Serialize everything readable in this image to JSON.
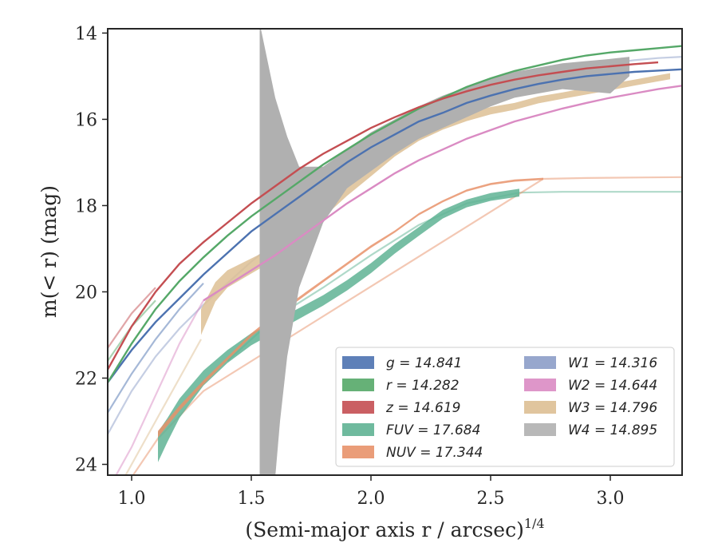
{
  "chart_data": {
    "type": "line",
    "xlabel": "(Semi-major axis r / arcsec)",
    "xlabel_exponent": "1/4",
    "ylabel": "m(< r) (mag)",
    "xlim": [
      0.9,
      3.3
    ],
    "ylim": [
      24.25,
      13.9
    ],
    "y_inverted": true,
    "x_ticks": [
      1.0,
      1.5,
      2.0,
      2.5,
      3.0
    ],
    "x_tick_labels": [
      "1.0",
      "1.5",
      "2.0",
      "2.5",
      "3.0"
    ],
    "y_ticks": [
      14,
      16,
      18,
      20,
      22,
      24
    ],
    "y_tick_labels": [
      "14",
      "16",
      "18",
      "20",
      "22",
      "24"
    ],
    "legend_position": "lower-right",
    "series": [
      {
        "name": "g",
        "label": "g = 14.841",
        "color": "#4c72b0",
        "x": [
          0.9,
          1.0,
          1.1,
          1.2,
          1.3,
          1.4,
          1.5,
          1.6,
          1.7,
          1.8,
          1.9,
          2.0,
          2.1,
          2.2,
          2.3,
          2.4,
          2.5,
          2.6,
          2.7,
          2.8,
          2.9,
          3.0,
          3.1,
          3.2,
          3.3
        ],
        "y": [
          22.1,
          21.35,
          20.7,
          20.15,
          19.6,
          19.1,
          18.6,
          18.2,
          17.8,
          17.4,
          17.0,
          16.65,
          16.35,
          16.05,
          15.85,
          15.62,
          15.45,
          15.3,
          15.18,
          15.08,
          15.0,
          14.95,
          14.9,
          14.87,
          14.84
        ],
        "x_faint": [
          0.9,
          1.0,
          1.1,
          1.2,
          1.3
        ],
        "y_faint": [
          22.8,
          21.9,
          21.1,
          20.4,
          19.8
        ]
      },
      {
        "name": "r",
        "label": "r = 14.282",
        "color": "#55a868",
        "x": [
          0.9,
          1.0,
          1.1,
          1.2,
          1.3,
          1.4,
          1.5,
          1.6,
          1.7,
          1.8,
          1.9,
          2.0,
          2.1,
          2.2,
          2.3,
          2.4,
          2.5,
          2.6,
          2.7,
          2.8,
          2.9,
          3.0,
          3.1,
          3.2,
          3.3
        ],
        "y": [
          22.1,
          21.2,
          20.4,
          19.75,
          19.2,
          18.7,
          18.25,
          17.85,
          17.45,
          17.05,
          16.7,
          16.35,
          16.05,
          15.75,
          15.5,
          15.25,
          15.05,
          14.88,
          14.75,
          14.62,
          14.52,
          14.45,
          14.4,
          14.35,
          14.3
        ],
        "x_faint": [
          0.9,
          1.0,
          1.1
        ],
        "y_faint": [
          21.6,
          20.8,
          20.2
        ]
      },
      {
        "name": "z",
        "label": "z = 14.619",
        "color": "#c44e52",
        "x": [
          0.9,
          1.0,
          1.1,
          1.2,
          1.3,
          1.4,
          1.5,
          1.6,
          1.7,
          1.8,
          1.9,
          2.0,
          2.1,
          2.2,
          2.3,
          2.4,
          2.5,
          2.6,
          2.7,
          2.8,
          2.9,
          3.0,
          3.1,
          3.2
        ],
        "y": [
          21.8,
          20.8,
          20.0,
          19.35,
          18.85,
          18.4,
          17.95,
          17.55,
          17.15,
          16.8,
          16.5,
          16.2,
          15.95,
          15.72,
          15.52,
          15.35,
          15.2,
          15.08,
          14.98,
          14.9,
          14.82,
          14.77,
          14.72,
          14.68
        ],
        "x_faint": [
          0.9,
          1.0,
          1.1
        ],
        "y_faint": [
          21.3,
          20.5,
          19.9
        ]
      },
      {
        "name": "FUV",
        "label": "FUV = 17.684",
        "color": "#5fb394",
        "x": [
          1.11,
          1.15,
          1.2,
          1.3,
          1.4,
          1.5,
          1.6,
          1.7,
          1.8,
          1.9,
          2.0,
          2.1,
          2.2,
          2.3,
          2.4,
          2.5,
          2.62
        ],
        "y": [
          23.6,
          23.2,
          22.7,
          22.0,
          21.5,
          21.1,
          20.8,
          20.5,
          20.2,
          19.85,
          19.45,
          19.0,
          18.6,
          18.2,
          17.95,
          17.8,
          17.7
        ],
        "band": [
          0.7,
          0.55,
          0.45,
          0.35,
          0.3,
          0.28,
          0.26,
          0.25,
          0.24,
          0.24,
          0.23,
          0.22,
          0.2,
          0.2,
          0.18,
          0.18,
          0.18
        ],
        "x_faint": [
          1.4,
          1.6,
          1.8,
          2.0,
          2.2,
          2.4,
          2.62,
          2.8,
          3.0,
          3.3
        ],
        "y_faint": [
          21.6,
          20.6,
          19.9,
          19.15,
          18.45,
          17.95,
          17.7,
          17.68,
          17.68,
          17.68
        ]
      },
      {
        "name": "NUV",
        "label": "NUV = 17.344",
        "color": "#e8926a",
        "x": [
          1.11,
          1.2,
          1.3,
          1.4,
          1.5,
          1.6,
          1.7,
          1.8,
          1.9,
          2.0,
          2.1,
          2.2,
          2.3,
          2.4,
          2.5,
          2.6,
          2.72
        ],
        "y": [
          23.3,
          22.7,
          22.1,
          21.55,
          21.0,
          20.55,
          20.15,
          19.75,
          19.35,
          18.95,
          18.6,
          18.2,
          17.9,
          17.65,
          17.5,
          17.42,
          17.38
        ],
        "band": [
          0.15,
          0.12,
          0.1,
          0.08,
          0.08,
          0.07,
          0.07,
          0.06,
          0.06,
          0.06,
          0.05,
          0.05,
          0.05,
          0.05,
          0.05,
          0.05,
          0.05
        ],
        "x_faint": [
          0.9,
          1.0,
          1.11,
          1.3,
          2.72,
          2.9,
          3.1,
          3.3
        ],
        "y_faint": [
          24.8,
          24.3,
          23.4,
          22.3,
          17.38,
          17.36,
          17.35,
          17.34
        ]
      },
      {
        "name": "W1",
        "label": "W1 = 14.316",
        "color": "#8c9dc8",
        "x_faint": [
          0.9,
          1.0,
          1.1,
          1.2,
          1.3,
          1.4,
          1.5,
          1.6,
          1.7,
          1.8,
          1.9,
          2.0,
          2.1,
          2.2,
          2.3,
          2.4,
          2.5,
          2.6,
          2.7,
          2.8,
          2.9,
          3.0,
          3.1,
          3.2,
          3.3
        ],
        "y_faint": [
          23.3,
          22.3,
          21.5,
          20.85,
          20.3,
          19.8,
          19.3,
          18.85,
          18.4,
          17.95,
          17.5,
          17.05,
          16.65,
          16.3,
          15.95,
          15.65,
          15.4,
          15.2,
          15.05,
          14.92,
          14.8,
          14.7,
          14.63,
          14.58,
          14.55
        ]
      },
      {
        "name": "W2",
        "label": "W2 = 14.644",
        "color": "#da8bc3",
        "x": [
          1.3,
          1.4,
          1.5,
          1.6,
          1.7,
          1.8,
          1.9,
          2.0,
          2.1,
          2.2,
          2.3,
          2.4,
          2.5,
          2.6,
          2.7,
          2.8,
          2.9,
          3.0,
          3.1,
          3.2,
          3.3
        ],
        "y": [
          20.2,
          19.85,
          19.5,
          19.15,
          18.75,
          18.35,
          17.95,
          17.6,
          17.25,
          16.95,
          16.7,
          16.45,
          16.25,
          16.05,
          15.9,
          15.75,
          15.62,
          15.5,
          15.4,
          15.3,
          15.22
        ],
        "x_faint": [
          0.9,
          1.0,
          1.1,
          1.2,
          1.3
        ],
        "y_faint": [
          24.6,
          23.6,
          22.4,
          21.2,
          20.2
        ]
      },
      {
        "name": "W3",
        "label": "W3 = 14.796",
        "color": "#ddbf94",
        "x": [
          1.29,
          1.35,
          1.4,
          1.5,
          1.6,
          1.7,
          1.8,
          1.9,
          2.0,
          2.1,
          2.2,
          2.3,
          2.4,
          2.5,
          2.6,
          2.7,
          2.8,
          2.9,
          3.0,
          3.1,
          3.2,
          3.25
        ],
        "y": [
          20.7,
          20.0,
          19.7,
          19.4,
          19.1,
          18.65,
          18.15,
          17.65,
          17.2,
          16.75,
          16.4,
          16.15,
          15.95,
          15.8,
          15.7,
          15.55,
          15.45,
          15.35,
          15.25,
          15.15,
          15.05,
          15.0
        ],
        "band": [
          0.6,
          0.45,
          0.4,
          0.35,
          0.3,
          0.28,
          0.26,
          0.25,
          0.24,
          0.22,
          0.2,
          0.18,
          0.18,
          0.17,
          0.16,
          0.16,
          0.15,
          0.15,
          0.15,
          0.14,
          0.14,
          0.14
        ],
        "x_faint": [
          0.9,
          1.0,
          1.1,
          1.2,
          1.29
        ],
        "y_faint": [
          25.0,
          24.0,
          23.0,
          22.0,
          21.1
        ]
      },
      {
        "name": "W4",
        "label": "W4 = 14.895",
        "color": "#b0b0b0",
        "band_upper": {
          "x": [
            1.535,
            1.54,
            1.6,
            1.65,
            1.7,
            1.8,
            1.9,
            2.0,
            2.1,
            2.2,
            2.3,
            2.4,
            2.5,
            2.6,
            2.7,
            2.8,
            2.9,
            3.0,
            3.08
          ],
          "y": [
            13.9,
            13.9,
            15.5,
            16.4,
            17.1,
            17.1,
            16.7,
            16.3,
            16.0,
            15.7,
            15.45,
            15.25,
            15.05,
            14.9,
            14.8,
            14.7,
            14.65,
            14.6,
            14.55
          ]
        },
        "band_lower": {
          "x": [
            1.535,
            1.55,
            1.6,
            1.62,
            1.65,
            1.7,
            1.8,
            1.9,
            2.0,
            2.1,
            2.2,
            2.3,
            2.4,
            2.5,
            2.6,
            2.7,
            2.8,
            2.9,
            3.0,
            3.08
          ],
          "y": [
            24.3,
            24.3,
            24.3,
            23.0,
            21.5,
            19.9,
            18.4,
            17.6,
            17.2,
            16.8,
            16.45,
            16.2,
            15.95,
            15.7,
            15.5,
            15.4,
            15.3,
            15.35,
            15.4,
            15.0
          ]
        }
      }
    ]
  }
}
